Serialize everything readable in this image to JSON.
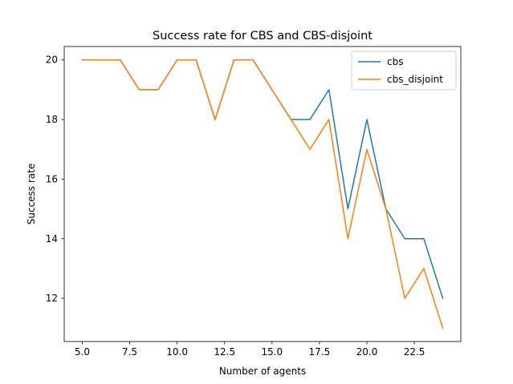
{
  "chart_data": {
    "type": "line",
    "title": "Success rate for CBS and CBS-disjoint",
    "xlabel": "Number of agents",
    "ylabel": "Success rate",
    "xlim": [
      4.05,
      24.95
    ],
    "ylim": [
      10.55,
      20.45
    ],
    "xticks": [
      "5.0",
      "7.5",
      "10.0",
      "12.5",
      "15.0",
      "17.5",
      "20.0",
      "22.5"
    ],
    "xtick_values": [
      5,
      7.5,
      10,
      12.5,
      15,
      17.5,
      20,
      22.5
    ],
    "yticks": [
      "12",
      "14",
      "16",
      "18",
      "20"
    ],
    "ytick_values": [
      12,
      14,
      16,
      18,
      20
    ],
    "grid": false,
    "legend_position": "top-right",
    "x": [
      5,
      6,
      7,
      8,
      9,
      10,
      11,
      12,
      13,
      14,
      15,
      16,
      17,
      18,
      19,
      20,
      21,
      22,
      23,
      24
    ],
    "series": [
      {
        "name": "cbs",
        "color": "#1f77b4",
        "values": [
          20,
          20,
          20,
          19,
          19,
          20,
          20,
          18,
          20,
          20,
          19,
          18,
          18,
          19,
          15,
          18,
          15,
          14,
          14,
          12
        ]
      },
      {
        "name": "cbs_disjoint",
        "color": "#ff7f0e",
        "values": [
          20,
          20,
          20,
          19,
          19,
          20,
          20,
          18,
          20,
          20,
          19,
          18,
          17,
          18,
          14,
          17,
          15,
          12,
          13,
          11
        ]
      }
    ]
  }
}
